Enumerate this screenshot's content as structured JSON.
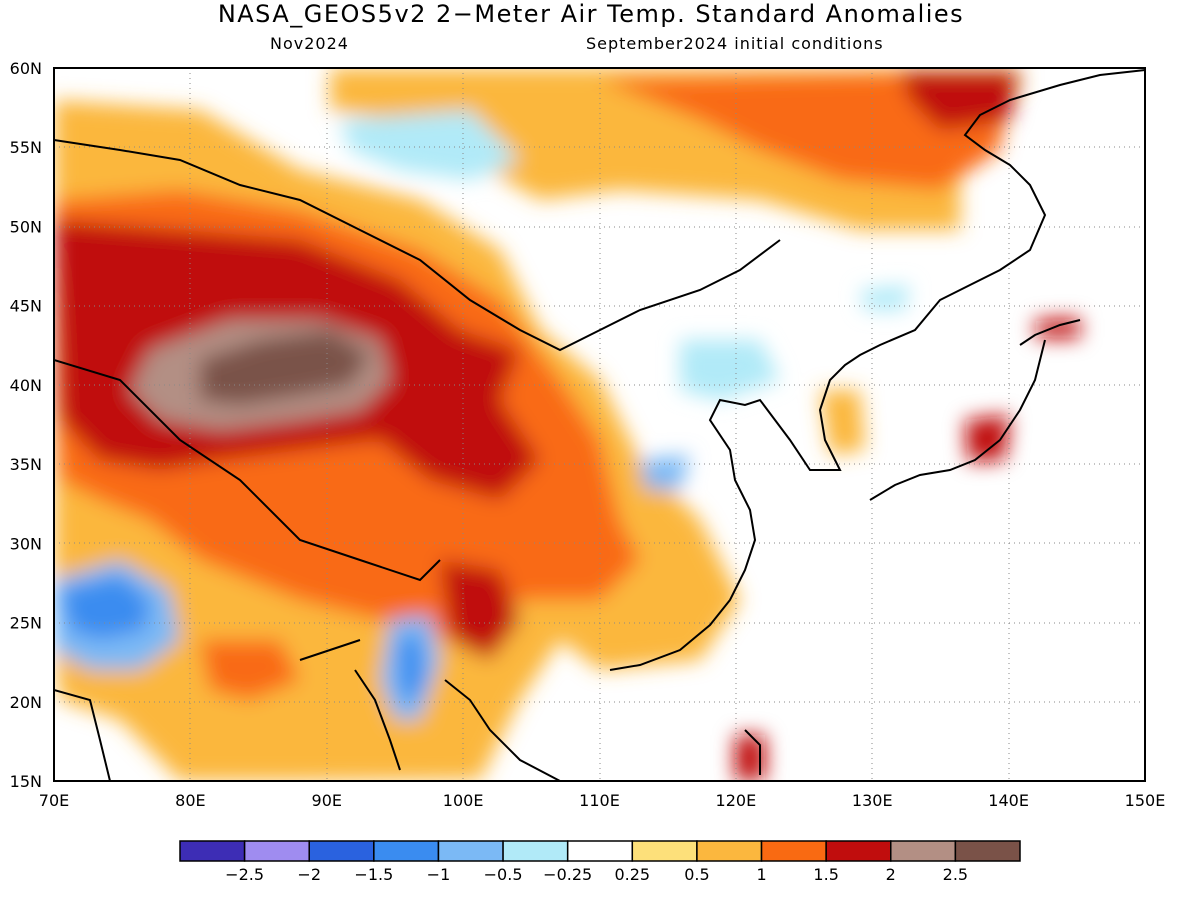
{
  "title": "NASA_GEOS5v2 2−Meter Air Temp. Standard Anomalies",
  "subtitle_left": "Nov2024",
  "subtitle_right": "September2024 initial conditions",
  "map": {
    "lat_labels": [
      "60N",
      "55N",
      "50N",
      "45N",
      "40N",
      "35N",
      "30N",
      "25N",
      "20N",
      "15N"
    ],
    "lon_labels": [
      "70E",
      "80E",
      "90E",
      "100E",
      "110E",
      "120E",
      "130E",
      "140E",
      "150E"
    ],
    "gridlines": "dotted"
  },
  "colorbar": {
    "colors": [
      "#3d2db5",
      "#9f8cf0",
      "#2a62df",
      "#3a8cf0",
      "#7bb9f5",
      "#b1eaf8",
      "#ffffff",
      "#fde07a",
      "#fbb73e",
      "#f96a12",
      "#c00d0d",
      "#b38f84",
      "#7a5248"
    ],
    "labels": [
      "−2.5",
      "−2",
      "−1.5",
      "−1",
      "−0.5",
      "−0.25",
      "0.25",
      "0.5",
      "1",
      "1.5",
      "2",
      "2.5"
    ]
  }
}
